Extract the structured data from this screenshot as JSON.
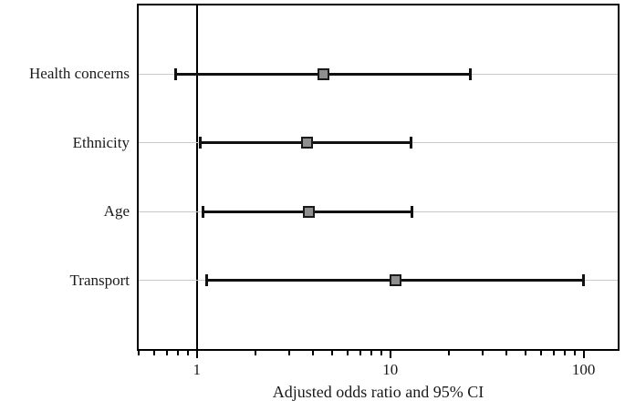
{
  "figure": {
    "background": "#ffffff"
  },
  "chart_data": {
    "type": "scatter",
    "variant": "forest-plot",
    "title": "",
    "xlabel": "Adjusted odds ratio and 95% CI",
    "ylabel": "",
    "x_scale": "log10",
    "xlim": [
      0.5,
      150
    ],
    "x_major_ticks": [
      1,
      10,
      100
    ],
    "x_major_tick_labels": [
      "1",
      "10",
      "100"
    ],
    "x_minor_ticks": [
      0.5,
      0.6,
      0.7,
      0.8,
      0.9,
      2,
      3,
      4,
      5,
      6,
      7,
      8,
      9,
      20,
      30,
      40,
      50,
      60,
      70,
      80,
      90
    ],
    "reference_line_x": 1,
    "grid": "horizontal-category-gridlines",
    "legend": "none",
    "categories": [
      "Health concerns",
      "Ethnicity",
      "Age",
      "Transport"
    ],
    "series": [
      {
        "name": "Adjusted odds ratio (95% CI)",
        "marker": "square",
        "points": [
          {
            "category": "Health concerns",
            "odds_ratio": 4.5,
            "ci_lower": 0.78,
            "ci_upper": 26
          },
          {
            "category": "Ethnicity",
            "odds_ratio": 3.7,
            "ci_lower": 1.04,
            "ci_upper": 12.8
          },
          {
            "category": "Age",
            "odds_ratio": 3.8,
            "ci_lower": 1.07,
            "ci_upper": 13.0
          },
          {
            "category": "Transport",
            "odds_ratio": 10.7,
            "ci_lower": 1.12,
            "ci_upper": 100
          }
        ]
      }
    ],
    "colors": {
      "frame": "#000000",
      "reference_line": "#000000",
      "error_bar": "#111111",
      "marker_fill": "#8f8f8f",
      "marker_border": "#1a1a1a",
      "gridline": "#c9c9c9",
      "text": "#1a1a1a",
      "background": "#ffffff"
    }
  }
}
